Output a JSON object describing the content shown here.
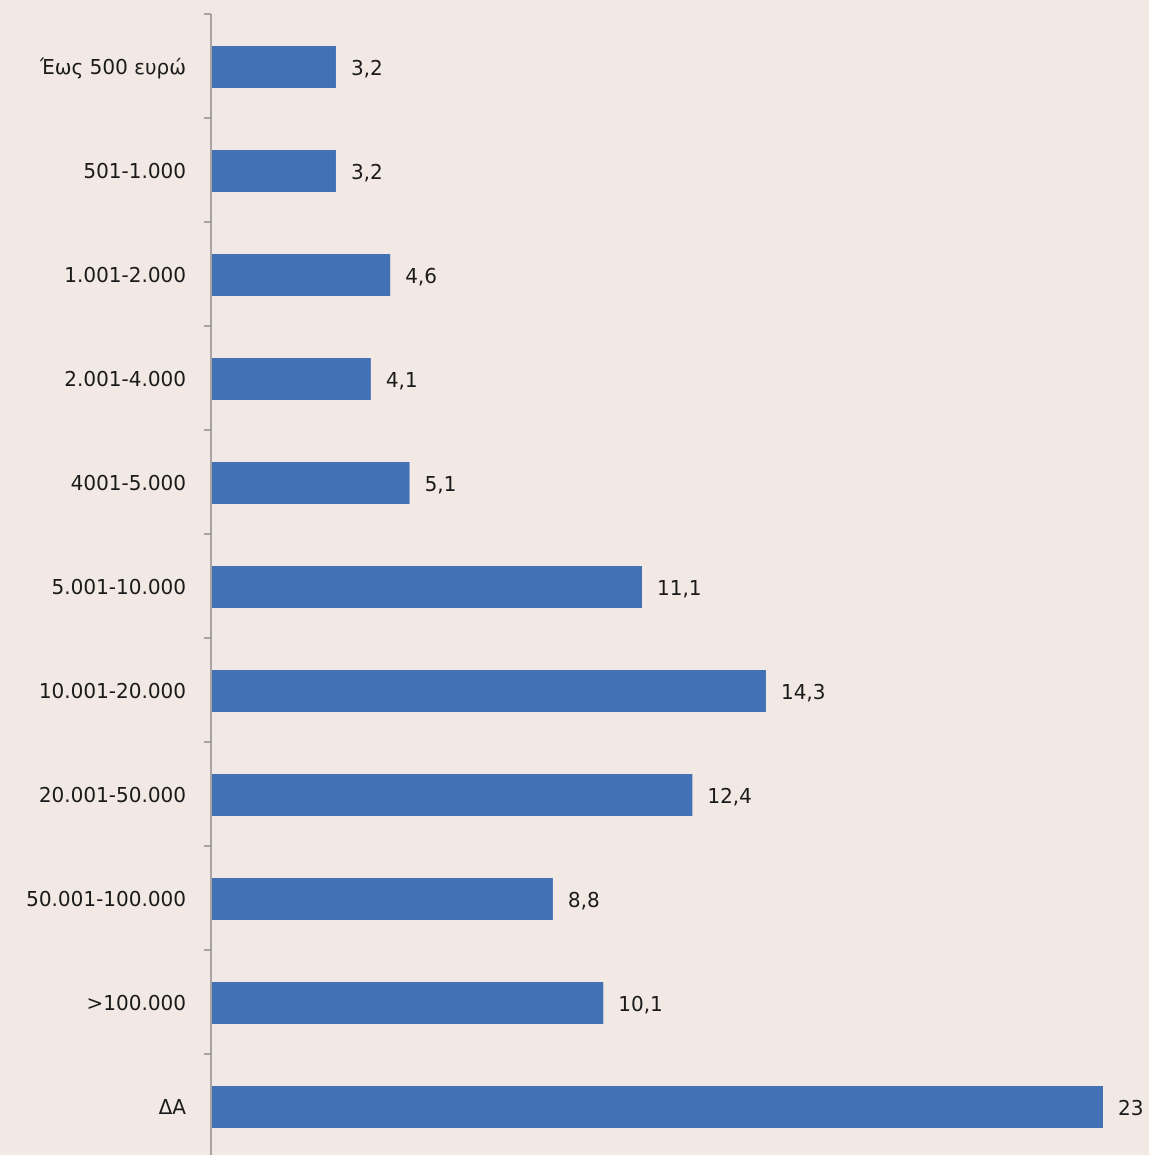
{
  "colors": {
    "background": "#f2e9e4",
    "bar": "#4272b5",
    "axis": "#8c8c8c",
    "text": "#1a1a1a"
  },
  "chart_data": {
    "type": "bar",
    "orientation": "horizontal",
    "categories": [
      "Έως 500 ευρώ",
      "501-1.000",
      "1.001-2.000",
      "2.001-4.000",
      "4001-5.000",
      "5.001-10.000",
      "10.001-20.000",
      "20.001-50.000",
      "50.001-100.000",
      ">100.000",
      "ΔΑ"
    ],
    "values": [
      3.2,
      3.2,
      4.6,
      4.1,
      5.1,
      11.1,
      14.3,
      12.4,
      8.8,
      10.1,
      23
    ],
    "value_labels": [
      "3,2",
      "3,2",
      "4,6",
      "4,1",
      "5,1",
      "11,1",
      "14,3",
      "12,4",
      "8,8",
      "10,1",
      "23"
    ],
    "xlim": [
      0,
      23
    ],
    "grid": false,
    "legend": "none",
    "title": "",
    "xlabel": "",
    "ylabel": ""
  }
}
